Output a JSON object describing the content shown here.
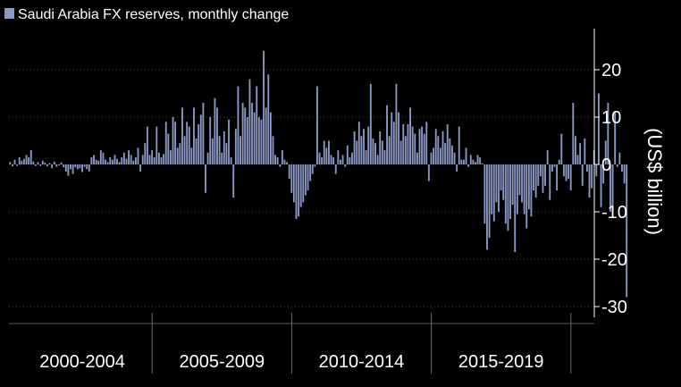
{
  "chart_data": {
    "type": "bar",
    "title": "",
    "xlabel": "",
    "ylabel": "(US$ billion)",
    "ylim": [
      -32,
      29
    ],
    "y_ticks": [
      20,
      10,
      0,
      -10,
      -20,
      -30
    ],
    "y_axis_side": "right",
    "grid": "horizontal dotted",
    "legend_position": "top-left",
    "x_period_labels": [
      "2000-2004",
      "2005-2009",
      "2010-2014",
      "2015-2019"
    ],
    "colors": {
      "background": "#000000",
      "bar": "#8a98c4",
      "grid": "#4a4a4a",
      "text": "#ffffff",
      "axis": "#ffffff"
    },
    "series": [
      {
        "name": "Saudi Arabia FX reserves, monthly change",
        "start": "2000-01",
        "frequency": "monthly",
        "values": [
          0.5,
          -0.4,
          1.0,
          -0.3,
          1.5,
          0.8,
          1.2,
          2.0,
          1.5,
          3.0,
          0.6,
          -0.3,
          0.5,
          -0.3,
          0.8,
          0.4,
          -0.4,
          0.3,
          -0.8,
          0.6,
          -0.5,
          -0.2,
          0.4,
          -0.6,
          -1.5,
          -2.4,
          -1.0,
          -2.0,
          -0.6,
          -1.0,
          -0.8,
          -1.6,
          -0.5,
          -1.0,
          -1.5,
          1.5,
          2.0,
          1.0,
          0.8,
          3.0,
          2.5,
          1.0,
          0.5,
          1.5,
          1.0,
          2.0,
          1.2,
          0.5,
          1.5,
          2.5,
          1.2,
          3.0,
          2.0,
          0.8,
          1.5,
          3.5,
          -1.5,
          2.0,
          4.5,
          8.0,
          2.0,
          3.0,
          1.5,
          8.0,
          2.5,
          1.5,
          2.2,
          9.0,
          6.5,
          3.0,
          10.0,
          9.0,
          3.5,
          4.5,
          12.0,
          6.0,
          9.0,
          8.0,
          3.5,
          12.0,
          5.5,
          8.5,
          10.5,
          13.0,
          -6.0,
          2.5,
          10.0,
          5.5,
          14.0,
          12.0,
          6.0,
          2.5,
          7.0,
          4.5,
          9.5,
          1.5,
          -7.0,
          7.5,
          16.5,
          6.0,
          13.0,
          12.0,
          10.0,
          18.0,
          13.0,
          11.0,
          16.5,
          10.0,
          9.5,
          24.0,
          12.0,
          19.0,
          11.0,
          6.0,
          2.0,
          1.5,
          -0.5,
          3.0,
          1.0,
          0.5,
          -3.0,
          -6.0,
          -8.0,
          -11.5,
          -11.0,
          -9.0,
          -8.0,
          -6.5,
          -5.5,
          -3.5,
          -2.0,
          -0.5,
          16.5,
          2.5,
          1.5,
          5.0,
          3.5,
          5.0,
          2.0,
          1.5,
          -2.0,
          3.0,
          1.0,
          2.0,
          -0.5,
          4.0,
          1.5,
          2.5,
          7.0,
          5.0,
          9.0,
          6.0,
          7.5,
          3.0,
          8.0,
          17.0,
          5.5,
          4.5,
          2.0,
          7.0,
          5.0,
          3.0,
          12.5,
          6.0,
          11.0,
          9.0,
          17.0,
          11.0,
          5.0,
          8.5,
          6.0,
          8.5,
          12.0,
          8.0,
          6.5,
          2.5,
          7.5,
          8.0,
          6.5,
          9.0,
          -3.5,
          2.5,
          3.5,
          7.5,
          6.0,
          3.5,
          7.0,
          4.5,
          8.5,
          5.5,
          4.0,
          2.5,
          -1.5,
          8.0,
          1.0,
          1.0,
          3.5,
          -0.5,
          2.0,
          1.0,
          0.5,
          2.0,
          1.5,
          0.2,
          -12.5,
          -18.0,
          -15.5,
          -10.5,
          -12.0,
          -8.0,
          -10.0,
          -5.5,
          -7.5,
          -12.5,
          -14.0,
          -11.5,
          -8.5,
          -18.5,
          -10.5,
          -6.5,
          -8.0,
          -10.5,
          -13.5,
          -9.5,
          -11.0,
          -5.5,
          -7.0,
          -4.5,
          -2.5,
          -6.0,
          -4.5,
          3.0,
          -7.5,
          -1.5,
          -0.5,
          -5.5,
          1.0,
          6.5,
          -2.5,
          -3.5,
          -3.0,
          -5.5,
          13.0,
          6.0,
          2.0,
          4.5,
          -4.5,
          5.5,
          -1.5,
          -7.0,
          -5.0,
          3.0,
          -2.5,
          15.0,
          -9.0,
          -4.0,
          5.0,
          13.0,
          -10.0,
          -9.5,
          11.0,
          -0.5,
          2.5,
          -1.5,
          -4.0,
          -28.0
        ]
      }
    ]
  }
}
